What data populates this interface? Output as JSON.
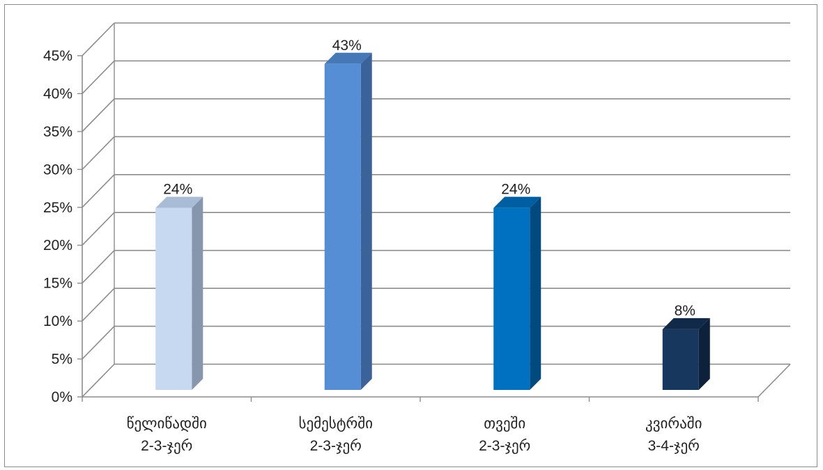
{
  "chart_data": {
    "type": "bar",
    "three_d": true,
    "categories": [
      [
        "წელიწადში",
        "2-3-ჯერ"
      ],
      [
        "სემესტრში",
        "2-3-ჯერ"
      ],
      [
        "თვეში",
        "2-3-ჯერ"
      ],
      [
        "კვირაში",
        "3-4-ჯერ"
      ]
    ],
    "values": [
      24,
      43,
      24,
      8
    ],
    "data_labels": [
      "24%",
      "43%",
      "24%",
      "8%"
    ],
    "bar_colors": [
      {
        "front": "#c6d9f1",
        "side": "#8596ad",
        "top": "#a9bcd6"
      },
      {
        "front": "#558ed5",
        "side": "#3b639a",
        "top": "#4677b7"
      },
      {
        "front": "#0070c0",
        "side": "#004a80",
        "top": "#005ea3"
      },
      {
        "front": "#17375e",
        "side": "#0d213a",
        "top": "#112a49"
      }
    ],
    "ylim": [
      0,
      45
    ],
    "y_ticks": [
      0,
      5,
      10,
      15,
      20,
      25,
      30,
      35,
      40,
      45
    ],
    "y_tick_labels": [
      "0%",
      "5%",
      "10%",
      "15%",
      "20%",
      "25%",
      "30%",
      "35%",
      "40%",
      "45%"
    ],
    "grid": true,
    "legend": "none",
    "title": "",
    "xlabel": "",
    "ylabel": ""
  }
}
